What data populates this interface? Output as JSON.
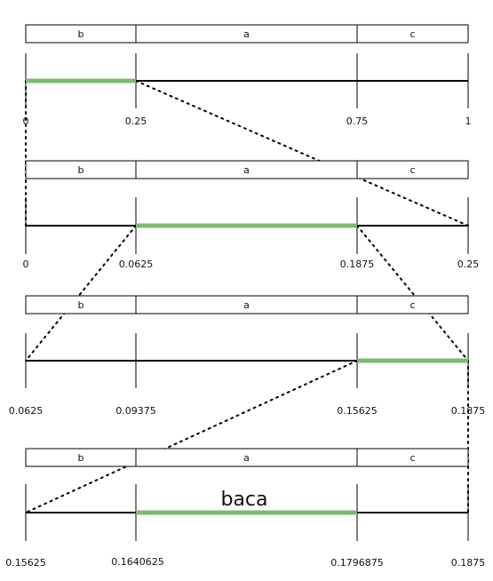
{
  "colors": {
    "highlight": "#7fb872",
    "line": "#000000",
    "box_fill": "#ffffff"
  },
  "rows": [
    {
      "segments": [
        "b",
        "a",
        "c"
      ],
      "tick_labels": [
        "0",
        "0.25",
        "0.75",
        "1"
      ],
      "highlight_segment": 0
    },
    {
      "segments": [
        "b",
        "a",
        "c"
      ],
      "tick_labels": [
        "0",
        "0.0625",
        "0.1875",
        "0.25"
      ],
      "highlight_segment": 1
    },
    {
      "segments": [
        "b",
        "a",
        "c"
      ],
      "tick_labels": [
        "0.0625",
        "0.09375",
        "0.15625",
        "0.1875"
      ],
      "highlight_segment": 2
    },
    {
      "segments": [
        "b",
        "a",
        "c"
      ],
      "tick_labels": [
        "0.15625",
        "0.1640625",
        "0.1796875",
        "0.1875"
      ],
      "highlight_segment": 1
    }
  ],
  "result_label": "baca"
}
